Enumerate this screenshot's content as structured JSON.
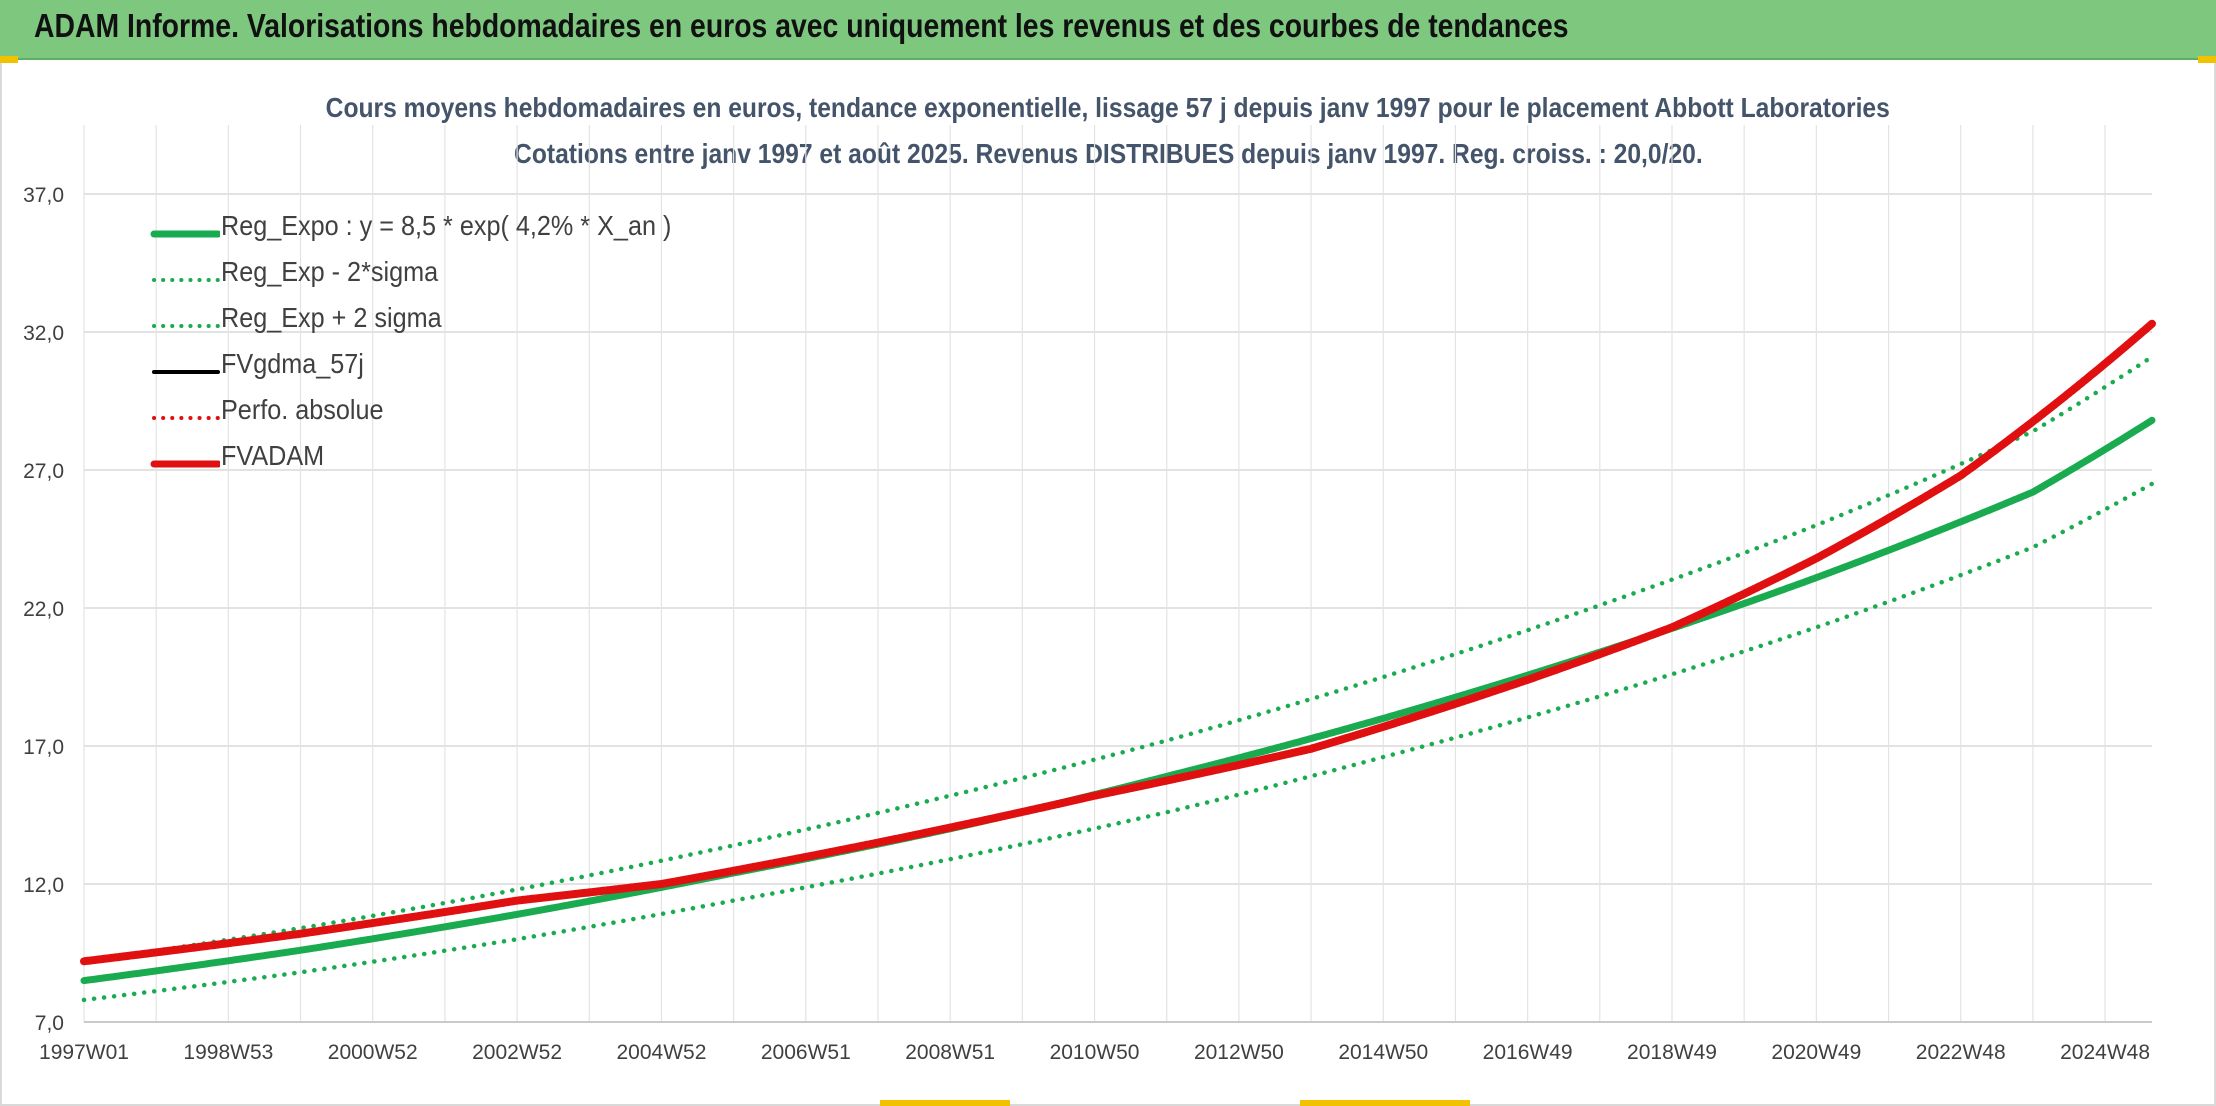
{
  "header": {
    "title": "ADAM Informe. Valorisations hebdomadaires en euros avec uniquement les revenus et des courbes de tendances"
  },
  "chart_data": {
    "type": "line",
    "title": "Cours moyens hebdomadaires en euros, tendance exponentielle, lissage 57 j depuis janv 1997 pour le placement Abbott Laboratories",
    "subtitle": "Cotations entre janv 1997 et août 2025. Revenus DISTRIBUES depuis janv 1997. Reg. croiss. : 20,0/20.",
    "xlabel": "",
    "ylabel": "",
    "x_range": [
      1997.0,
      2025.65
    ],
    "ylim": [
      7.0,
      39.5
    ],
    "y_ticks": [
      "7,0",
      "12,0",
      "17,0",
      "22,0",
      "27,0",
      "32,0",
      "37,0"
    ],
    "y_tick_values": [
      7,
      12,
      17,
      22,
      27,
      32,
      37
    ],
    "x_ticks": [
      "1997W01",
      "1998W53",
      "2000W52",
      "2002W52",
      "2004W52",
      "2006W51",
      "2008W51",
      "2010W50",
      "2012W50",
      "2014W50",
      "2016W49",
      "2018W49",
      "2020W49",
      "2022W48",
      "2024W48"
    ],
    "x_tick_values": [
      1997.0,
      1999.0,
      2001.0,
      2003.0,
      2005.0,
      2007.0,
      2009.0,
      2011.0,
      2013.0,
      2015.0,
      2017.0,
      2019.0,
      2021.0,
      2023.0,
      2025.0
    ],
    "grid": true,
    "legend_position": "top-left",
    "series": [
      {
        "name": "Reg_Expo : y = 8,5 * exp( 4,2% *  X_an )",
        "color": "#1aab50",
        "style": "solid",
        "x": [
          1997,
          2000,
          2003,
          2006,
          2009,
          2012,
          2015,
          2018,
          2021,
          2024,
          2025.65
        ],
        "values": [
          8.5,
          9.6,
          10.9,
          12.4,
          14.0,
          15.9,
          18.0,
          20.4,
          23.1,
          26.2,
          28.8
        ]
      },
      {
        "name": "Reg_Exp - 2*sigma",
        "color": "#1aab50",
        "style": "dotted",
        "x": [
          1997,
          2000,
          2003,
          2006,
          2009,
          2012,
          2015,
          2018,
          2021,
          2024,
          2025.65
        ],
        "values": [
          7.8,
          8.8,
          10.0,
          11.4,
          12.9,
          14.6,
          16.6,
          18.8,
          21.3,
          24.2,
          26.5
        ]
      },
      {
        "name": "Reg_Exp + 2 sigma",
        "color": "#1aab50",
        "style": "dotted",
        "x": [
          1997,
          2000,
          2003,
          2006,
          2009,
          2012,
          2015,
          2018,
          2021,
          2024,
          2025.65
        ],
        "values": [
          9.2,
          10.4,
          11.8,
          13.4,
          15.2,
          17.2,
          19.5,
          22.1,
          25.0,
          28.4,
          31.1
        ]
      },
      {
        "name": "FVgdma_57j",
        "color": "#000000",
        "style": "solid",
        "x": [
          1997,
          2000,
          2003,
          2005,
          2008,
          2011,
          2014,
          2017,
          2019,
          2021,
          2023,
          2025.65
        ],
        "values": [
          9.2,
          10.2,
          11.4,
          12.0,
          13.5,
          15.2,
          16.9,
          19.4,
          21.3,
          23.8,
          26.8,
          32.3
        ]
      },
      {
        "name": "Perfo. absolue",
        "color": "#e01010",
        "style": "dotted",
        "x": [
          1997,
          2000,
          2003,
          2005,
          2008,
          2011,
          2014,
          2017,
          2019,
          2021,
          2023,
          2025.65
        ],
        "values": [
          9.2,
          10.2,
          11.4,
          12.0,
          13.5,
          15.2,
          16.9,
          19.4,
          21.3,
          23.8,
          26.8,
          32.3
        ]
      },
      {
        "name": "FVADAM",
        "color": "#e01010",
        "style": "solid",
        "x": [
          1997,
          2000,
          2003,
          2005,
          2008,
          2011,
          2014,
          2017,
          2019,
          2021,
          2023,
          2025.65
        ],
        "values": [
          9.2,
          10.2,
          11.4,
          12.0,
          13.5,
          15.2,
          16.9,
          19.4,
          21.3,
          23.8,
          26.8,
          32.3
        ]
      }
    ]
  }
}
